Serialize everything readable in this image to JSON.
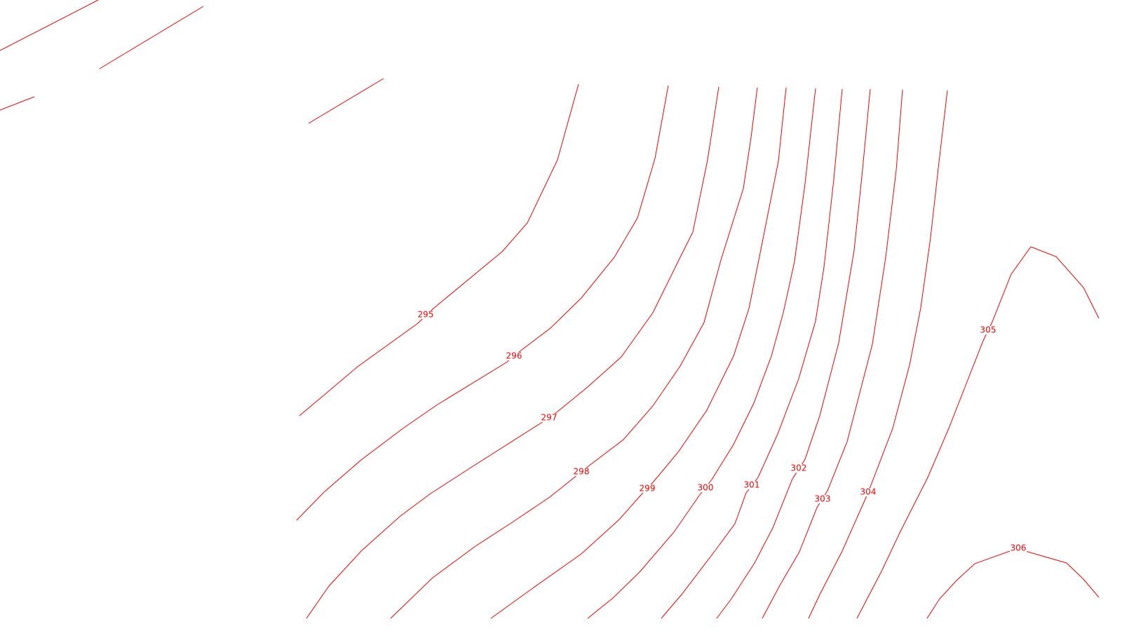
{
  "map": {
    "line_color": "#ff0000",
    "background_color": "#ffffff",
    "contours": [
      {
        "level": "295",
        "label": "295"
      },
      {
        "level": "296",
        "label": "296"
      },
      {
        "level": "297",
        "label": "297"
      },
      {
        "level": "298",
        "label": "298"
      },
      {
        "level": "299",
        "label": "299"
      },
      {
        "level": "300",
        "label": "300"
      },
      {
        "level": "301",
        "label": "301"
      },
      {
        "level": "302",
        "label": "302"
      },
      {
        "level": "303",
        "label": "303"
      },
      {
        "level": "304",
        "label": "304"
      },
      {
        "level": "305",
        "label": "305"
      },
      {
        "level": "306",
        "label": "306"
      }
    ]
  }
}
